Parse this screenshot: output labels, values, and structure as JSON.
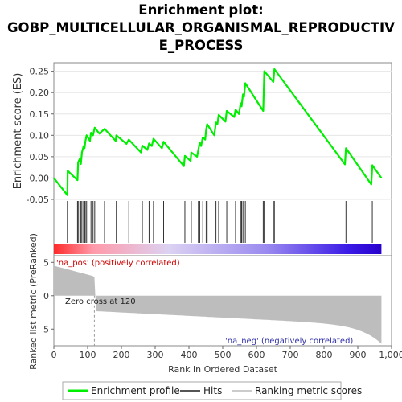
{
  "title": "Enrichment plot:",
  "title_lines": [
    "GOBP_MULTICELLULAR_ORGANISMAL_REPRODUCTIV",
    "E_PROCESS"
  ],
  "chart_data": {
    "type": "line",
    "title": "Enrichment plot: GOBP_MULTICELLULAR_ORGANISMAL_REPRODUCTIVE_PROCESS",
    "xlabel": "Rank in Ordered Dataset",
    "ylabel_top": "Enrichment score (ES)",
    "ylabel_bottom": "Ranked list metric (PreRanked)",
    "xlim": [
      0,
      1000
    ],
    "x_ticks": [
      0,
      100,
      200,
      300,
      400,
      500,
      600,
      700,
      800,
      900,
      "1,000"
    ],
    "es_ylim": [
      -0.05,
      0.27
    ],
    "es_y_ticks": [
      "-0.05",
      "0.00",
      "0.05",
      "0.10",
      "0.15",
      "0.20",
      "0.25"
    ],
    "metric_ylim": [
      -7.5,
      6
    ],
    "metric_y_ticks": [
      "5",
      "0",
      "-5"
    ],
    "es_line_color": "#00ee00",
    "es_points": [
      [
        0,
        0.0
      ],
      [
        40,
        -0.04
      ],
      [
        41,
        0.017
      ],
      [
        70,
        -0.005
      ],
      [
        72,
        0.037
      ],
      [
        77,
        0.045
      ],
      [
        80,
        0.033
      ],
      [
        83,
        0.06
      ],
      [
        88,
        0.075
      ],
      [
        91,
        0.07
      ],
      [
        93,
        0.085
      ],
      [
        97,
        0.1
      ],
      [
        107,
        0.087
      ],
      [
        110,
        0.106
      ],
      [
        116,
        0.1
      ],
      [
        121,
        0.118
      ],
      [
        135,
        0.104
      ],
      [
        150,
        0.115
      ],
      [
        183,
        0.087
      ],
      [
        185,
        0.1
      ],
      [
        215,
        0.08
      ],
      [
        222,
        0.09
      ],
      [
        258,
        0.06
      ],
      [
        262,
        0.076
      ],
      [
        277,
        0.066
      ],
      [
        282,
        0.081
      ],
      [
        290,
        0.075
      ],
      [
        295,
        0.092
      ],
      [
        320,
        0.07
      ],
      [
        325,
        0.085
      ],
      [
        385,
        0.028
      ],
      [
        388,
        0.052
      ],
      [
        405,
        0.04
      ],
      [
        407,
        0.06
      ],
      [
        424,
        0.05
      ],
      [
        428,
        0.067
      ],
      [
        432,
        0.083
      ],
      [
        436,
        0.075
      ],
      [
        441,
        0.095
      ],
      [
        448,
        0.09
      ],
      [
        451,
        0.113
      ],
      [
        454,
        0.126
      ],
      [
        475,
        0.1
      ],
      [
        480,
        0.13
      ],
      [
        484,
        0.125
      ],
      [
        488,
        0.148
      ],
      [
        508,
        0.132
      ],
      [
        512,
        0.157
      ],
      [
        534,
        0.143
      ],
      [
        538,
        0.16
      ],
      [
        548,
        0.15
      ],
      [
        553,
        0.175
      ],
      [
        556,
        0.168
      ],
      [
        560,
        0.196
      ],
      [
        563,
        0.19
      ],
      [
        567,
        0.222
      ],
      [
        620,
        0.157
      ],
      [
        623,
        0.25
      ],
      [
        650,
        0.225
      ],
      [
        653,
        0.255
      ],
      [
        862,
        0.032
      ],
      [
        865,
        0.07
      ],
      [
        940,
        -0.015
      ],
      [
        943,
        0.03
      ],
      [
        970,
        0.0
      ]
    ],
    "hits": [
      40,
      41,
      70,
      72,
      77,
      80,
      83,
      88,
      91,
      93,
      97,
      110,
      116,
      121,
      150,
      185,
      222,
      262,
      282,
      295,
      325,
      388,
      407,
      428,
      432,
      441,
      451,
      454,
      480,
      488,
      512,
      538,
      553,
      556,
      560,
      567,
      620,
      623,
      650,
      653,
      865,
      943
    ],
    "zero_cross": 120,
    "metric_range": {
      "start": 4.5,
      "at_zero_cross": 0,
      "end": -7.2
    },
    "labels": {
      "pos": "'na_pos' (positively correlated)",
      "neg": "'na_neg' (negatively correlated)",
      "zero": "Zero cross at 120"
    },
    "colorbar": [
      "#ff2a2a",
      "#ff9aaa",
      "#dcd2f2",
      "#9a8af0",
      "#3a1ae6",
      "#2800cc"
    ]
  },
  "legend": {
    "items": [
      {
        "label": "Enrichment profile",
        "color": "#00ee00"
      },
      {
        "label": "Hits",
        "color": "#555555"
      },
      {
        "label": "Ranking metric scores",
        "color": "#cccccc"
      }
    ]
  }
}
